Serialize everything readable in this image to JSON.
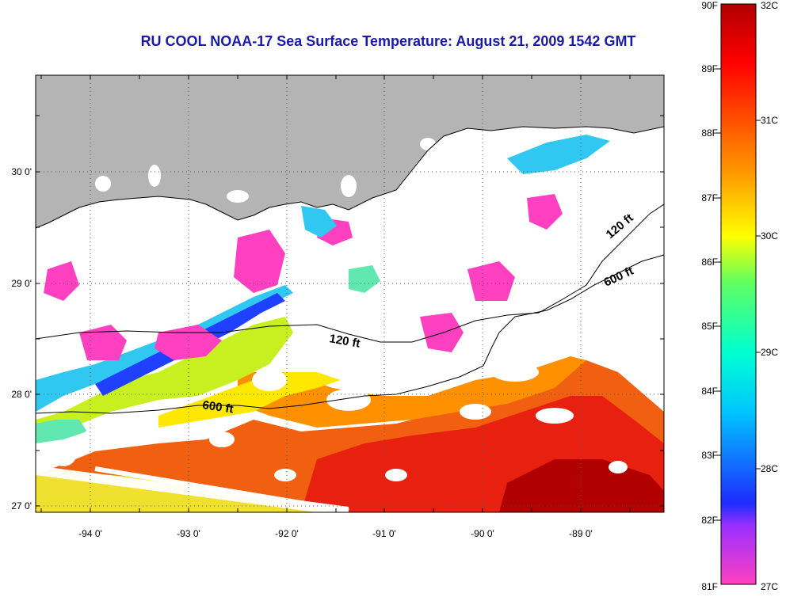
{
  "title": "RU COOL  NOAA-17  Sea Surface Temperature:  August 21, 2009 1542 GMT",
  "map": {
    "lat_labels": [
      "30 0'",
      "29 0'",
      "28 0'",
      "27 0'"
    ],
    "lon_labels": [
      "-94 0'",
      "-93 0'",
      "-92 0'",
      "-91 0'",
      "-90 0'",
      "-89 0'"
    ],
    "depth_labels": [
      "120 ft",
      "600 ft",
      "120 ft",
      "600 ft"
    ],
    "land_color": "#b4b4b4"
  },
  "colorbar": {
    "fahrenheit_labels": [
      "90F",
      "89F",
      "88F",
      "87F",
      "86F",
      "85F",
      "84F",
      "83F",
      "82F",
      "81F"
    ],
    "celsius_labels": [
      "32C",
      "31C",
      "30C",
      "29C",
      "28C",
      "27C"
    ],
    "stops": [
      "#ff40c0",
      "#9b30ff",
      "#1e2cff",
      "#00c8ff",
      "#00ffd0",
      "#60ff60",
      "#ffff00",
      "#ffa000",
      "#ff4000",
      "#ff0000",
      "#b00000"
    ]
  }
}
